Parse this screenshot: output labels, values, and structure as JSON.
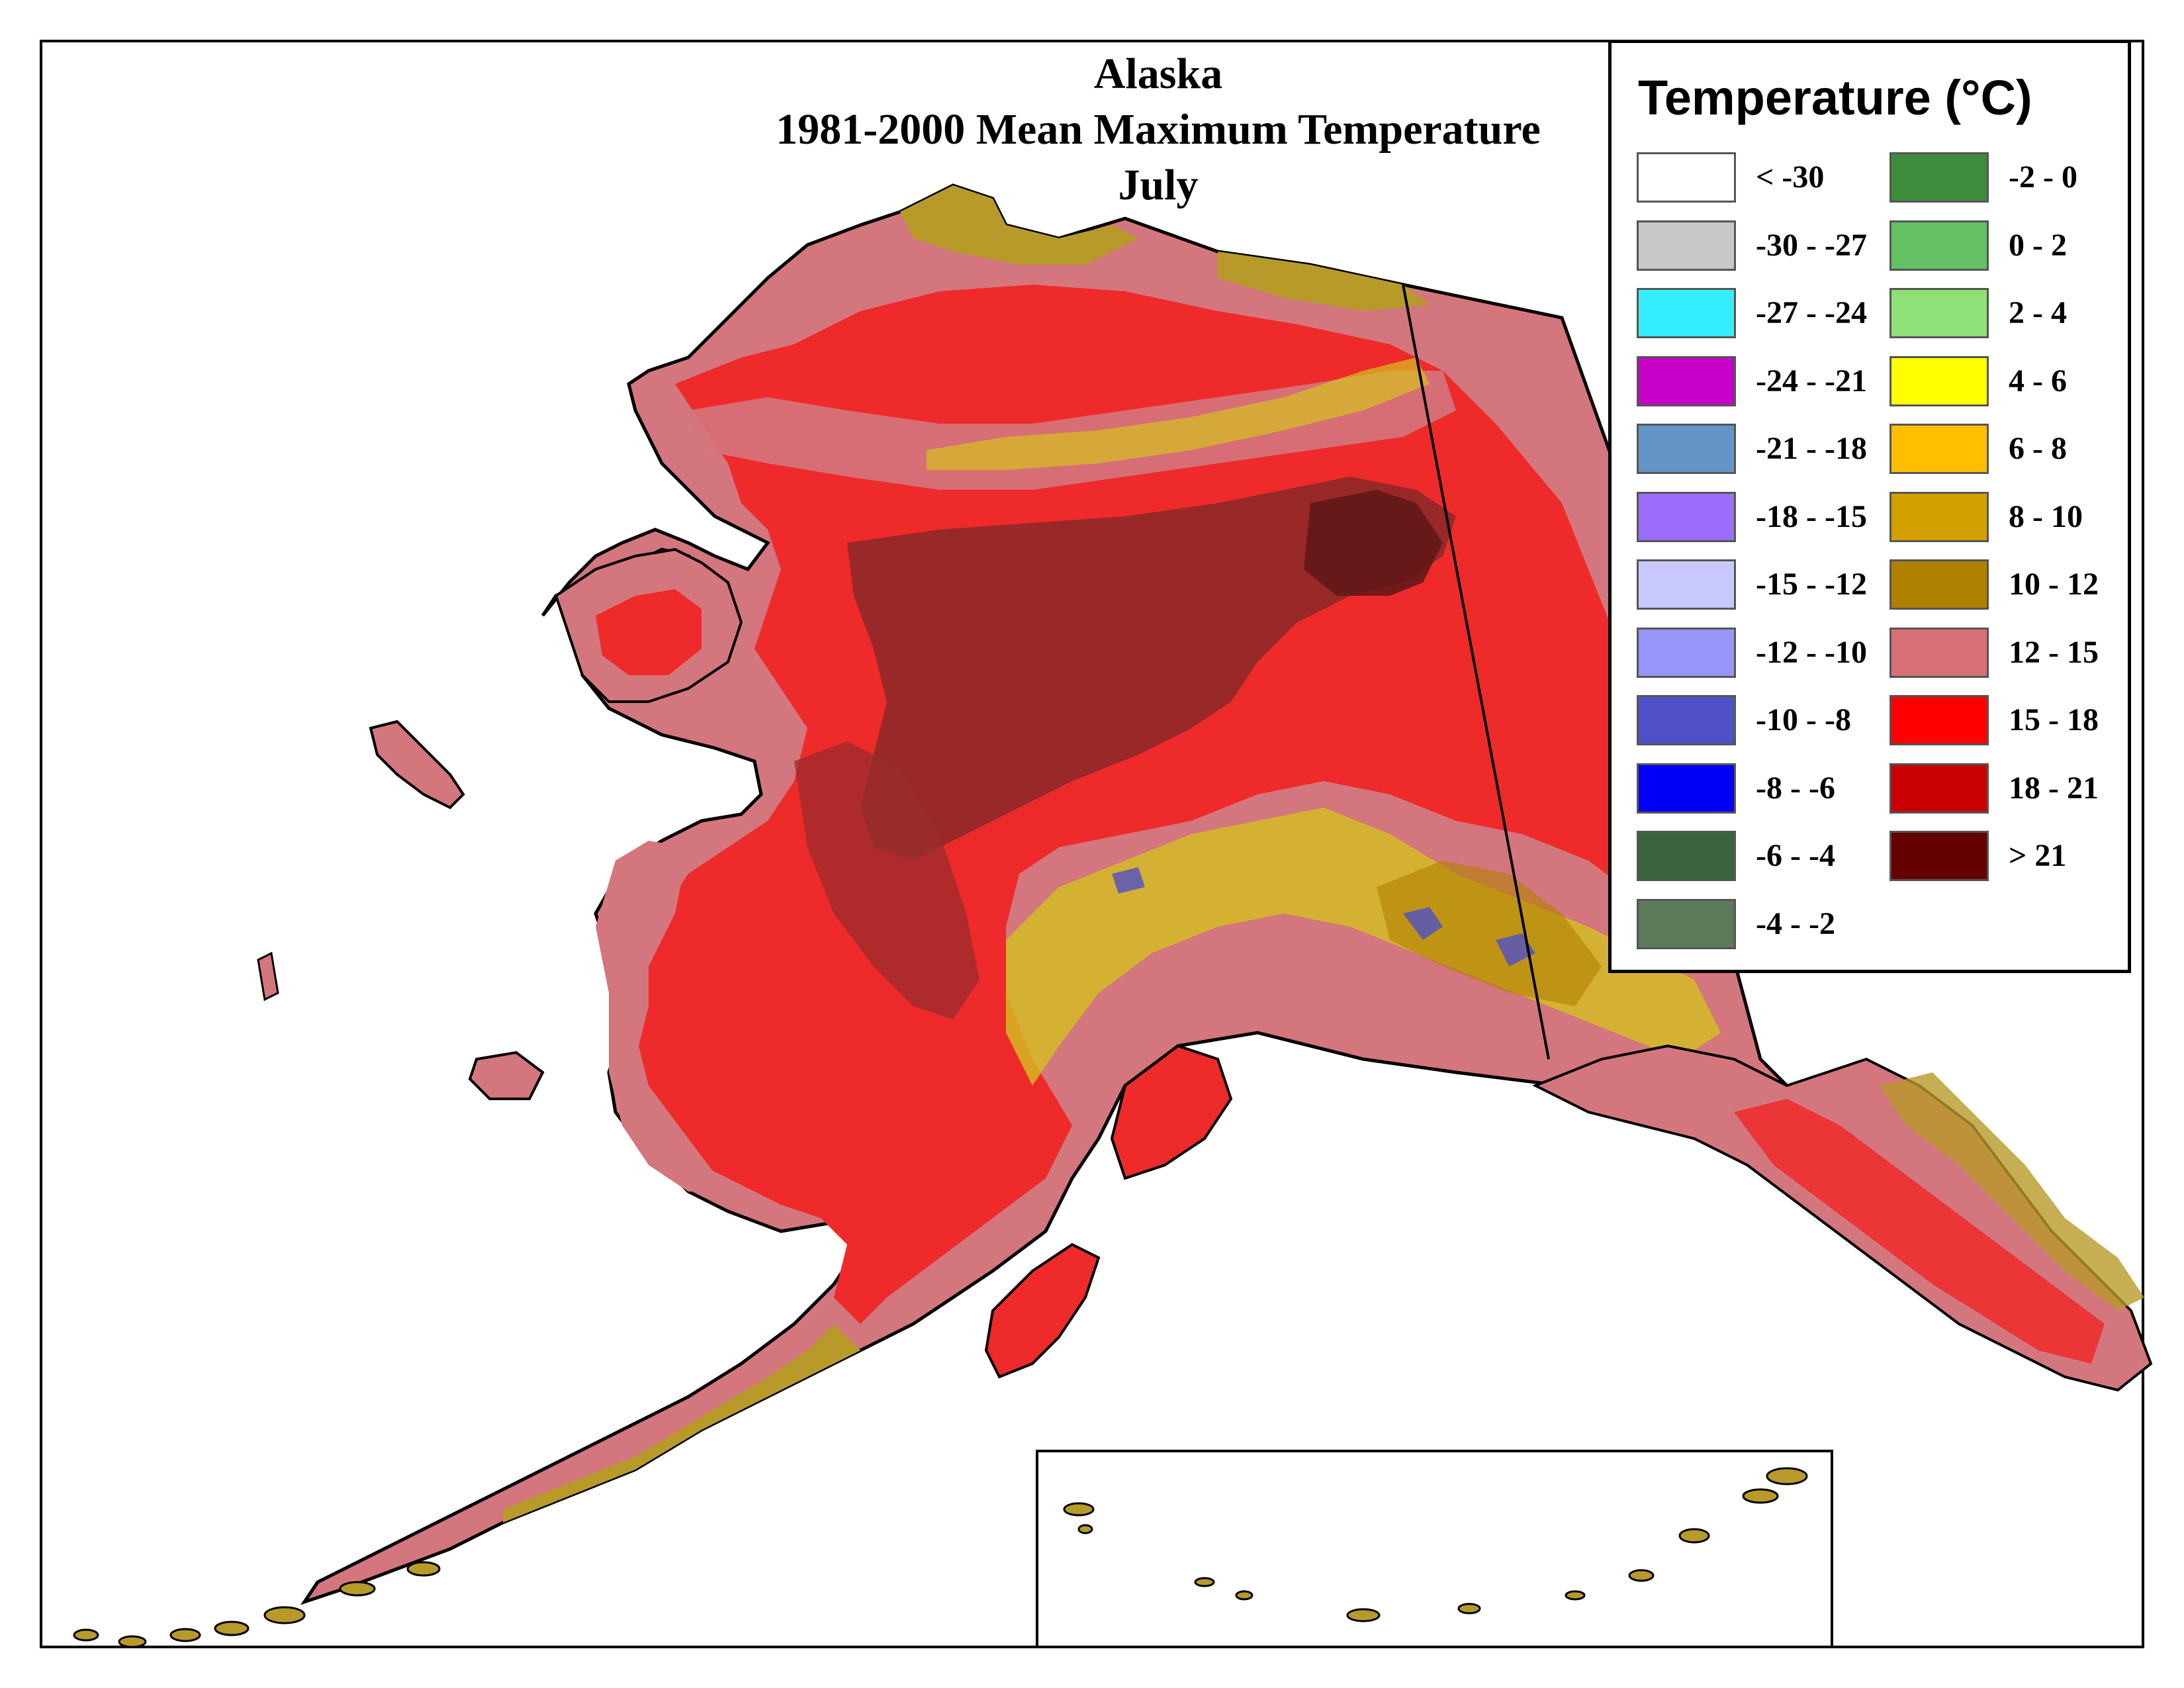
{
  "title": {
    "line1": "Alaska",
    "line2": "1981-2000 Mean Maximum Temperature",
    "line3": "July"
  },
  "legend": {
    "title": "Temperature (°C)",
    "left_column": [
      {
        "label": "< -30",
        "color": "#ffffff"
      },
      {
        "label": "-30 - -27",
        "color": "#c8c8c8"
      },
      {
        "label": "-27 - -24",
        "color": "#33eeff"
      },
      {
        "label": "-24 - -21",
        "color": "#c800c8"
      },
      {
        "label": "-21 - -18",
        "color": "#6495c8"
      },
      {
        "label": "-18 - -15",
        "color": "#9a6efa"
      },
      {
        "label": "-15 - -12",
        "color": "#c8c8ff"
      },
      {
        "label": "-12 - -10",
        "color": "#9696fa"
      },
      {
        "label": "-10 - -8",
        "color": "#5050c8"
      },
      {
        "label": "-8 - -6",
        "color": "#0000fa"
      },
      {
        "label": "-6 - -4",
        "color": "#3c643c"
      },
      {
        "label": "-4 - -2",
        "color": "#5a7a5a"
      }
    ],
    "right_column": [
      {
        "label": "-2 - 0",
        "color": "#3c8c3c"
      },
      {
        "label": "0 - 2",
        "color": "#64c064"
      },
      {
        "label": "2 - 4",
        "color": "#90e078"
      },
      {
        "label": "4 - 6",
        "color": "#ffff00"
      },
      {
        "label": "6 - 8",
        "color": "#ffbe00"
      },
      {
        "label": "8 - 10",
        "color": "#d4a000"
      },
      {
        "label": "10 - 12",
        "color": "#b08000"
      },
      {
        "label": "12 - 15",
        "color": "#d87078"
      },
      {
        "label": "15 - 18",
        "color": "#ff0000"
      },
      {
        "label": "18 - 21",
        "color": "#c80000"
      },
      {
        "label": "> 21",
        "color": "#640000"
      }
    ]
  },
  "map_colors": {
    "coast_brown": "#b89a2a",
    "pink": "#d4767e",
    "red": "#ee2a2a",
    "dark_red": "#8a2828",
    "yellow": "#d4c020"
  }
}
